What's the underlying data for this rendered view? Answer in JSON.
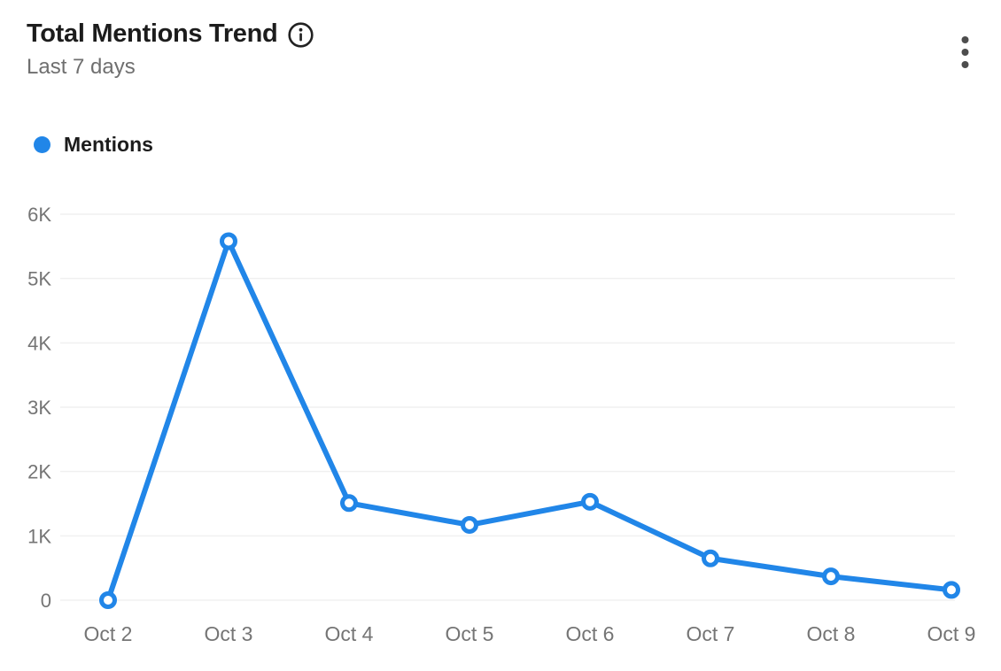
{
  "header": {
    "title": "Total Mentions Trend",
    "subtitle": "Last 7 days",
    "info_icon": "info-circle-icon",
    "menu_icon": "kebab-menu-icon"
  },
  "legend": {
    "label": "Mentions",
    "color": "#2186e8"
  },
  "chart_data": {
    "type": "line",
    "title": "Total Mentions Trend",
    "subtitle": "Last 7 days",
    "categories": [
      "Oct 2",
      "Oct 3",
      "Oct 4",
      "Oct 5",
      "Oct 6",
      "Oct 7",
      "Oct 8",
      "Oct 9"
    ],
    "series": [
      {
        "name": "Mentions",
        "values": [
          0,
          5580,
          1510,
          1170,
          1530,
          650,
          370,
          160
        ]
      }
    ],
    "ylim": [
      0,
      6000
    ],
    "yticks": [
      0,
      1000,
      2000,
      3000,
      4000,
      5000,
      6000
    ],
    "ytick_labels": [
      "0",
      "1K",
      "2K",
      "3K",
      "4K",
      "5K",
      "6K"
    ],
    "xlabel": "",
    "ylabel": "",
    "grid": "horizontal",
    "legend_position": "top-left",
    "line_color": "#2186e8",
    "grid_color": "#f0f0f0",
    "axis_label_color": "#757575",
    "marker": "open-circle"
  }
}
